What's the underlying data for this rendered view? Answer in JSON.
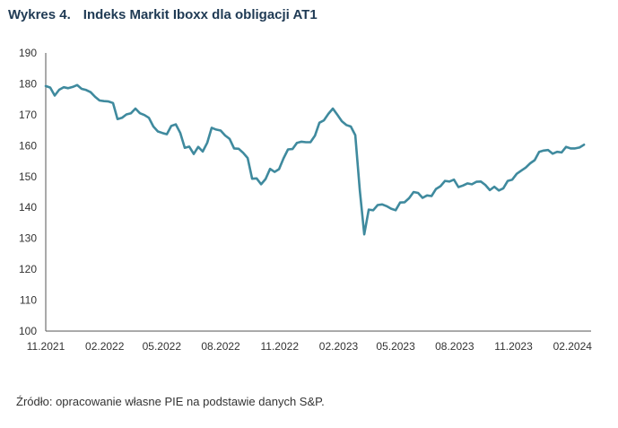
{
  "title": {
    "number": "Wykres 4.",
    "text": "Indeks Markit Iboxx dla obligacji AT1"
  },
  "source": "Źródło: opracowanie własne PIE na podstawie danych S&P.",
  "colors": {
    "line": "#3f8a9e",
    "axis": "#555555",
    "title": "#1f3a54"
  },
  "chart_data": {
    "type": "line",
    "title": "Indeks Markit Iboxx dla obligacji AT1",
    "xlabel": "",
    "ylabel": "",
    "ylim": [
      100,
      190
    ],
    "yticks": [
      100,
      110,
      120,
      130,
      140,
      150,
      160,
      170,
      180,
      190
    ],
    "xlim": [
      "2021-11",
      "2024-03"
    ],
    "xticks": [
      {
        "label": "11.2021",
        "date": "2021-11"
      },
      {
        "label": "02.2022",
        "date": "2022-02"
      },
      {
        "label": "05.2022",
        "date": "2022-05"
      },
      {
        "label": "08.2022",
        "date": "2022-08"
      },
      {
        "label": "11.2022",
        "date": "2022-11"
      },
      {
        "label": "02.2023",
        "date": "2023-02"
      },
      {
        "label": "05.2023",
        "date": "2023-05"
      },
      {
        "label": "08.2023",
        "date": "2023-08"
      },
      {
        "label": "11.2023",
        "date": "2023-11"
      },
      {
        "label": "02.2024",
        "date": "2024-02"
      }
    ],
    "grid": false,
    "series": [
      {
        "name": "",
        "points": [
          [
            "2021-11-01",
            179.3
          ],
          [
            "2021-11-08",
            178.8
          ],
          [
            "2021-11-15",
            176.2
          ],
          [
            "2021-11-22",
            178.1
          ],
          [
            "2021-11-29",
            178.9
          ],
          [
            "2021-12-06",
            178.6
          ],
          [
            "2021-12-13",
            179.0
          ],
          [
            "2021-12-20",
            179.6
          ],
          [
            "2021-12-27",
            178.4
          ],
          [
            "2022-01-03",
            178.0
          ],
          [
            "2022-01-10",
            177.3
          ],
          [
            "2022-01-17",
            175.8
          ],
          [
            "2022-01-24",
            174.6
          ],
          [
            "2022-01-31",
            174.4
          ],
          [
            "2022-02-07",
            174.3
          ],
          [
            "2022-02-14",
            173.8
          ],
          [
            "2022-02-21",
            168.6
          ],
          [
            "2022-02-28",
            169.0
          ],
          [
            "2022-03-07",
            170.1
          ],
          [
            "2022-03-14",
            170.5
          ],
          [
            "2022-03-21",
            172.0
          ],
          [
            "2022-03-28",
            170.5
          ],
          [
            "2022-04-04",
            169.9
          ],
          [
            "2022-04-11",
            169.0
          ],
          [
            "2022-04-18",
            166.2
          ],
          [
            "2022-04-25",
            164.6
          ],
          [
            "2022-05-02",
            164.1
          ],
          [
            "2022-05-09",
            163.7
          ],
          [
            "2022-05-16",
            166.4
          ],
          [
            "2022-05-23",
            166.9
          ],
          [
            "2022-05-30",
            164.1
          ],
          [
            "2022-06-06",
            159.3
          ],
          [
            "2022-06-13",
            159.7
          ],
          [
            "2022-06-20",
            157.3
          ],
          [
            "2022-06-27",
            159.6
          ],
          [
            "2022-07-04",
            158.1
          ],
          [
            "2022-07-11",
            160.9
          ],
          [
            "2022-07-18",
            165.8
          ],
          [
            "2022-07-25",
            165.2
          ],
          [
            "2022-08-01",
            164.9
          ],
          [
            "2022-08-08",
            163.3
          ],
          [
            "2022-08-15",
            162.2
          ],
          [
            "2022-08-22",
            159.1
          ],
          [
            "2022-08-29",
            159.0
          ],
          [
            "2022-09-05",
            157.7
          ],
          [
            "2022-09-12",
            156.0
          ],
          [
            "2022-09-19",
            149.3
          ],
          [
            "2022-09-26",
            149.4
          ],
          [
            "2022-10-03",
            147.5
          ],
          [
            "2022-10-10",
            149.2
          ],
          [
            "2022-10-17",
            152.5
          ],
          [
            "2022-10-24",
            151.5
          ],
          [
            "2022-10-31",
            152.4
          ],
          [
            "2022-11-07",
            155.9
          ],
          [
            "2022-11-14",
            158.8
          ],
          [
            "2022-11-21",
            158.9
          ],
          [
            "2022-11-28",
            160.9
          ],
          [
            "2022-12-05",
            161.3
          ],
          [
            "2022-12-12",
            161.1
          ],
          [
            "2022-12-19",
            161.1
          ],
          [
            "2022-12-26",
            163.2
          ],
          [
            "2023-01-02",
            167.4
          ],
          [
            "2023-01-09",
            168.2
          ],
          [
            "2023-01-16",
            170.3
          ],
          [
            "2023-01-23",
            172.0
          ],
          [
            "2023-01-30",
            170.0
          ],
          [
            "2023-02-06",
            167.9
          ],
          [
            "2023-02-13",
            166.7
          ],
          [
            "2023-02-20",
            166.2
          ],
          [
            "2023-02-27",
            163.4
          ],
          [
            "2023-03-06",
            145.7
          ],
          [
            "2023-03-13",
            131.3
          ],
          [
            "2023-03-20",
            139.3
          ],
          [
            "2023-03-27",
            139.1
          ],
          [
            "2023-04-03",
            140.8
          ],
          [
            "2023-04-10",
            141.0
          ],
          [
            "2023-04-17",
            140.4
          ],
          [
            "2023-04-24",
            139.6
          ],
          [
            "2023-05-01",
            139.1
          ],
          [
            "2023-05-08",
            141.6
          ],
          [
            "2023-05-15",
            141.7
          ],
          [
            "2023-05-22",
            143.0
          ],
          [
            "2023-05-29",
            145.0
          ],
          [
            "2023-06-05",
            144.7
          ],
          [
            "2023-06-12",
            143.1
          ],
          [
            "2023-06-19",
            143.9
          ],
          [
            "2023-06-26",
            143.7
          ],
          [
            "2023-07-03",
            146.0
          ],
          [
            "2023-07-10",
            146.9
          ],
          [
            "2023-07-17",
            148.6
          ],
          [
            "2023-07-24",
            148.4
          ],
          [
            "2023-07-31",
            149.0
          ],
          [
            "2023-08-07",
            146.6
          ],
          [
            "2023-08-14",
            147.1
          ],
          [
            "2023-08-21",
            147.8
          ],
          [
            "2023-08-28",
            147.5
          ],
          [
            "2023-09-04",
            148.3
          ],
          [
            "2023-09-11",
            148.4
          ],
          [
            "2023-09-18",
            147.3
          ],
          [
            "2023-09-25",
            145.6
          ],
          [
            "2023-10-02",
            146.7
          ],
          [
            "2023-10-09",
            145.5
          ],
          [
            "2023-10-16",
            146.2
          ],
          [
            "2023-10-23",
            148.6
          ],
          [
            "2023-10-30",
            149.0
          ],
          [
            "2023-11-06",
            150.9
          ],
          [
            "2023-11-13",
            151.9
          ],
          [
            "2023-11-20",
            152.9
          ],
          [
            "2023-11-27",
            154.3
          ],
          [
            "2023-12-04",
            155.3
          ],
          [
            "2023-12-11",
            158.0
          ],
          [
            "2023-12-18",
            158.4
          ],
          [
            "2023-12-25",
            158.6
          ],
          [
            "2024-01-01",
            157.4
          ],
          [
            "2024-01-08",
            158.0
          ],
          [
            "2024-01-15",
            157.8
          ],
          [
            "2024-01-22",
            159.6
          ],
          [
            "2024-01-29",
            159.1
          ],
          [
            "2024-02-05",
            159.1
          ],
          [
            "2024-02-12",
            159.4
          ],
          [
            "2024-02-19",
            160.3
          ]
        ]
      }
    ]
  }
}
